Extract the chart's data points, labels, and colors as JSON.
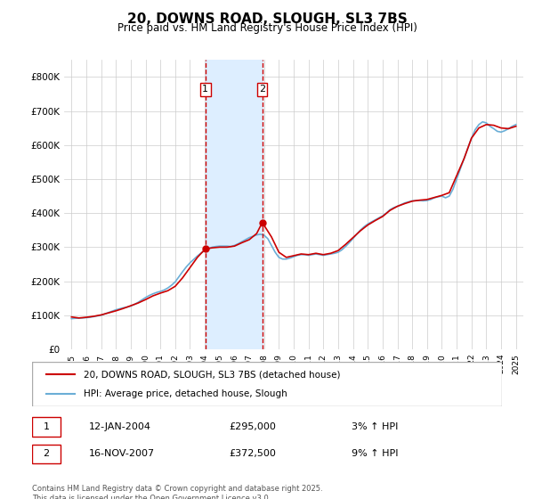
{
  "title": "20, DOWNS ROAD, SLOUGH, SL3 7BS",
  "subtitle": "Price paid vs. HM Land Registry's House Price Index (HPI)",
  "ylabel": "",
  "ylim": [
    0,
    850000
  ],
  "yticks": [
    0,
    100000,
    200000,
    300000,
    400000,
    500000,
    600000,
    700000,
    800000
  ],
  "ytick_labels": [
    "£0",
    "£100K",
    "£200K",
    "£300K",
    "£400K",
    "£500K",
    "£600K",
    "£700K",
    "£800K"
  ],
  "x_start_year": 1995,
  "x_end_year": 2025,
  "purchase1_year": 2004.04,
  "purchase1_label": "1",
  "purchase1_date": "12-JAN-2004",
  "purchase1_price": 295000,
  "purchase1_hpi_pct": "3% ↑ HPI",
  "purchase2_year": 2007.88,
  "purchase2_label": "2",
  "purchase2_date": "16-NOV-2007",
  "purchase2_price": 372500,
  "purchase2_hpi_pct": "9% ↑ HPI",
  "house_color": "#cc0000",
  "hpi_color": "#6baed6",
  "shade_color": "#ddeeff",
  "legend_house": "20, DOWNS ROAD, SLOUGH, SL3 7BS (detached house)",
  "legend_hpi": "HPI: Average price, detached house, Slough",
  "footer": "Contains HM Land Registry data © Crown copyright and database right 2025.\nThis data is licensed under the Open Government Licence v3.0.",
  "background_color": "#ffffff",
  "grid_color": "#cccccc",
  "hpi_series": {
    "years": [
      1995.0,
      1995.25,
      1995.5,
      1995.75,
      1996.0,
      1996.25,
      1996.5,
      1996.75,
      1997.0,
      1997.25,
      1997.5,
      1997.75,
      1998.0,
      1998.25,
      1998.5,
      1998.75,
      1999.0,
      1999.25,
      1999.5,
      1999.75,
      2000.0,
      2000.25,
      2000.5,
      2000.75,
      2001.0,
      2001.25,
      2001.5,
      2001.75,
      2002.0,
      2002.25,
      2002.5,
      2002.75,
      2003.0,
      2003.25,
      2003.5,
      2003.75,
      2004.0,
      2004.25,
      2004.5,
      2004.75,
      2005.0,
      2005.25,
      2005.5,
      2005.75,
      2006.0,
      2006.25,
      2006.5,
      2006.75,
      2007.0,
      2007.25,
      2007.5,
      2007.75,
      2008.0,
      2008.25,
      2008.5,
      2008.75,
      2009.0,
      2009.25,
      2009.5,
      2009.75,
      2010.0,
      2010.25,
      2010.5,
      2010.75,
      2011.0,
      2011.25,
      2011.5,
      2011.75,
      2012.0,
      2012.25,
      2012.5,
      2012.75,
      2013.0,
      2013.25,
      2013.5,
      2013.75,
      2014.0,
      2014.25,
      2014.5,
      2014.75,
      2015.0,
      2015.25,
      2015.5,
      2015.75,
      2016.0,
      2016.25,
      2016.5,
      2016.75,
      2017.0,
      2017.25,
      2017.5,
      2017.75,
      2018.0,
      2018.25,
      2018.5,
      2018.75,
      2019.0,
      2019.25,
      2019.5,
      2019.75,
      2020.0,
      2020.25,
      2020.5,
      2020.75,
      2021.0,
      2021.25,
      2021.5,
      2021.75,
      2022.0,
      2022.25,
      2022.5,
      2022.75,
      2023.0,
      2023.25,
      2023.5,
      2023.75,
      2024.0,
      2024.25,
      2024.5,
      2024.75,
      2025.0
    ],
    "values": [
      90000,
      91000,
      91500,
      92000,
      93000,
      94000,
      96000,
      98000,
      100000,
      104000,
      108000,
      112000,
      116000,
      119000,
      122000,
      124000,
      127000,
      132000,
      138000,
      145000,
      152000,
      158000,
      163000,
      167000,
      170000,
      174000,
      180000,
      188000,
      198000,
      213000,
      228000,
      242000,
      254000,
      264000,
      274000,
      283000,
      290000,
      296000,
      300000,
      302000,
      303000,
      303000,
      303000,
      302000,
      305000,
      310000,
      316000,
      322000,
      328000,
      332000,
      336000,
      338000,
      335000,
      325000,
      305000,
      285000,
      270000,
      265000,
      265000,
      268000,
      272000,
      276000,
      278000,
      278000,
      276000,
      278000,
      280000,
      278000,
      276000,
      278000,
      280000,
      282000,
      285000,
      292000,
      302000,
      313000,
      325000,
      338000,
      350000,
      360000,
      368000,
      374000,
      380000,
      386000,
      392000,
      400000,
      410000,
      416000,
      420000,
      425000,
      430000,
      433000,
      436000,
      437000,
      437000,
      436000,
      437000,
      440000,
      445000,
      448000,
      450000,
      445000,
      450000,
      470000,
      500000,
      530000,
      560000,
      590000,
      620000,
      645000,
      660000,
      668000,
      665000,
      655000,
      648000,
      640000,
      638000,
      642000,
      648000,
      655000,
      660000
    ]
  },
  "house_series": {
    "years": [
      1995.0,
      1995.5,
      1996.0,
      1996.5,
      1997.0,
      1997.5,
      1998.0,
      1998.5,
      1999.0,
      1999.5,
      2000.0,
      2000.5,
      2001.0,
      2001.5,
      2002.0,
      2002.5,
      2003.0,
      2003.5,
      2004.04,
      2004.5,
      2005.0,
      2005.5,
      2006.0,
      2006.5,
      2007.0,
      2007.5,
      2007.88,
      2008.5,
      2009.0,
      2009.5,
      2010.0,
      2010.5,
      2011.0,
      2011.5,
      2012.0,
      2012.5,
      2013.0,
      2013.5,
      2014.0,
      2014.5,
      2015.0,
      2015.5,
      2016.0,
      2016.5,
      2017.0,
      2017.5,
      2018.0,
      2018.5,
      2019.0,
      2019.5,
      2020.0,
      2020.5,
      2021.0,
      2021.5,
      2022.0,
      2022.5,
      2023.0,
      2023.5,
      2024.0,
      2024.5,
      2025.0
    ],
    "values": [
      95000,
      92000,
      94000,
      97000,
      101000,
      107000,
      113000,
      120000,
      128000,
      136000,
      146000,
      157000,
      165000,
      172000,
      185000,
      210000,
      240000,
      270000,
      295000,
      298000,
      300000,
      300000,
      303000,
      313000,
      322000,
      340000,
      372500,
      330000,
      285000,
      270000,
      275000,
      280000,
      278000,
      282000,
      278000,
      282000,
      290000,
      308000,
      328000,
      348000,
      365000,
      378000,
      390000,
      408000,
      420000,
      428000,
      435000,
      438000,
      440000,
      446000,
      452000,
      460000,
      510000,
      560000,
      620000,
      650000,
      660000,
      658000,
      650000,
      648000,
      655000
    ]
  }
}
